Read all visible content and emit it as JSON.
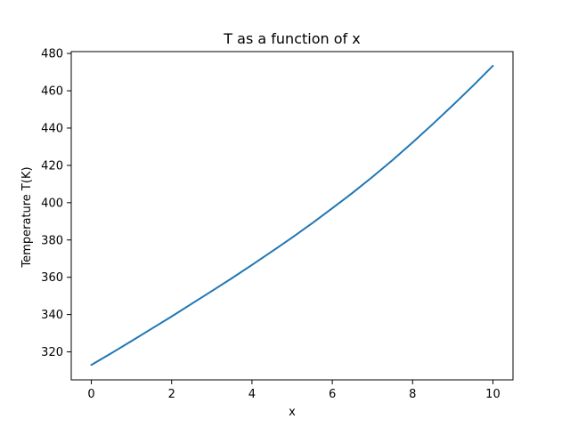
{
  "chart_data": {
    "type": "line",
    "title": "T as a function of x",
    "xlabel": "x",
    "ylabel": "Temperature T(K)",
    "xlim": [
      -0.5,
      10.5
    ],
    "ylim": [
      305,
      481
    ],
    "xticks": [
      0,
      2,
      4,
      6,
      8,
      10
    ],
    "yticks": [
      320,
      340,
      360,
      380,
      400,
      420,
      440,
      460,
      480
    ],
    "grid": false,
    "legend": "none",
    "series": [
      {
        "color": "#1f77b4",
        "x": [
          0,
          0.5,
          1,
          1.5,
          2,
          2.5,
          3,
          3.5,
          4,
          4.5,
          5,
          5.5,
          6,
          6.5,
          7,
          7.5,
          8,
          8.5,
          9,
          9.5,
          10
        ],
        "y": [
          313.0,
          319.3,
          325.8,
          332.4,
          339.0,
          345.8,
          352.6,
          359.5,
          366.6,
          373.9,
          381.3,
          389.0,
          397.0,
          405.2,
          413.8,
          422.8,
          432.3,
          442.1,
          452.2,
          462.6,
          473.4
        ]
      }
    ]
  }
}
